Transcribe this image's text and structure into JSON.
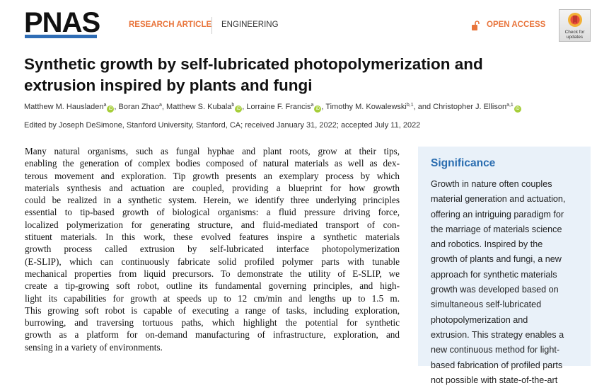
{
  "header": {
    "logo": "PNAS",
    "article_type": "RESEARCH ARTICLE",
    "section": "ENGINEERING",
    "access": "OPEN ACCESS",
    "check_updates": [
      "Check for",
      "updates"
    ],
    "accent_color": "#e8743b",
    "brand_color": "#2f6db5"
  },
  "title_lines": [
    "Synthetic growth by self-lubricated photopolymerization and",
    "extrusion inspired by plants and fungi"
  ],
  "authors": [
    {
      "name": "Matthew M. Hausladen",
      "aff": "a",
      "orcid": true,
      "sep": ", "
    },
    {
      "name": "Boran Zhao",
      "aff": "a",
      "orcid": false,
      "sep": ", "
    },
    {
      "name": "Matthew S. Kubala",
      "aff": "b",
      "orcid": true,
      "sep": ", "
    },
    {
      "name": "Lorraine F. Francis",
      "aff": "a",
      "orcid": true,
      "sep": ", "
    },
    {
      "name": "Timothy M. Kowalewski",
      "aff": "b,1",
      "orcid": false,
      "sep": ", and "
    },
    {
      "name": "Christopher J. Ellison",
      "aff": "a,1",
      "orcid": true,
      "sep": ""
    }
  ],
  "edited": "Edited by Joseph DeSimone, Stanford University, Stanford, CA; received January 31, 2022; accepted July 11, 2022",
  "abstract_lines": [
    "Many natural organisms, such as fungal hyphae and plant roots, grow at their tips,",
    "enabling the generation of complex bodies composed of natural materials as well as dex-",
    "terous movement and exploration. Tip growth presents an exemplary process by which",
    "materials synthesis and actuation are coupled, providing a blueprint for how growth",
    "could be realized in a synthetic system. Herein, we identify three underlying principles",
    "essential to tip-based growth of biological organisms: a fluid pressure driving force,",
    "localized polymerization for generating structure, and fluid-mediated transport of con-",
    "stituent materials. In this work, these evolved features inspire a synthetic materials",
    "growth process called extrusion by self-lubricated interface photopolymerization",
    "(E-SLIP), which can continuously fabricate solid profiled polymer parts with tunable",
    "mechanical properties from liquid precursors. To demonstrate the utility of E-SLIP, we",
    "create a tip-growing soft robot, outline its fundamental governing principles, and high-",
    "light its capabilities for growth at speeds up to 12 cm/min and lengths up to 1.5 m.",
    "This growing soft robot is capable of executing a range of tasks, including exploration,",
    "burrowing, and traversing tortuous paths, which highlight the potential for synthetic",
    "growth as a platform for on-demand manufacturing of infrastructure, exploration, and",
    "sensing in a variety of environments."
  ],
  "significance": {
    "title": "Significance",
    "lines": [
      "Growth in nature often couples",
      "material generation and actuation,",
      "offering an intriguing paradigm for",
      "the marriage of materials science",
      "and robotics. Inspired by the",
      "growth of plants and fungi, a new",
      "approach for synthetic materials",
      "growth was developed based on",
      "simultaneous self-lubricated",
      "photopolymerization and",
      "extrusion. This strategy enables a",
      "new continuous method for light-",
      "based fabrication of profiled parts",
      "not possible with state-of-the-art"
    ]
  }
}
